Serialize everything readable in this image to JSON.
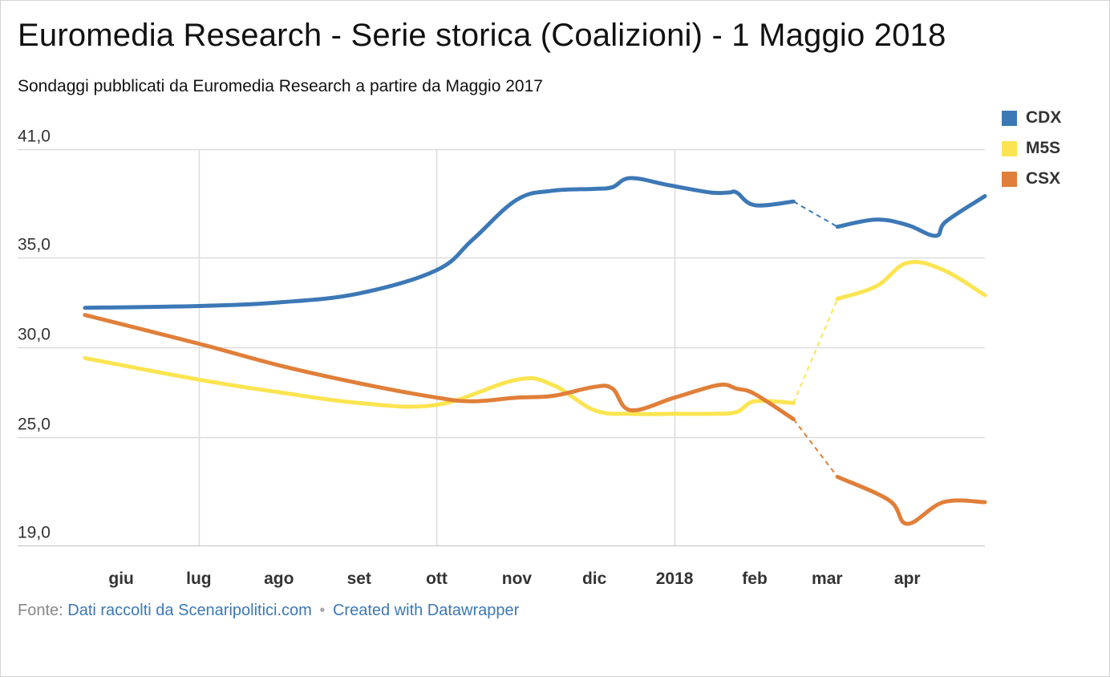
{
  "header": {
    "title": "Euromedia Research - Serie storica (Coalizioni) - 1 Maggio 2018",
    "subtitle": "Sondaggi pubblicati da Euromedia Research a partire da Maggio 2017"
  },
  "footer": {
    "source_label": "Fonte:",
    "source_link": "Dati raccolti da Scenaripolitici.com",
    "separator": "•",
    "datawrapper_link": "Created with Datawrapper"
  },
  "chart_data": {
    "type": "line",
    "y_ticks": [
      {
        "value": 41,
        "label": "41,0"
      },
      {
        "value": 35,
        "label": "35,0"
      },
      {
        "value": 30,
        "label": "30,0"
      },
      {
        "value": 25,
        "label": "25,0"
      },
      {
        "value": 19,
        "label": "19,0"
      }
    ],
    "x_ticks": [
      {
        "date": "2017-06-01",
        "label": "giu"
      },
      {
        "date": "2017-07-01",
        "label": "lug"
      },
      {
        "date": "2017-08-01",
        "label": "ago"
      },
      {
        "date": "2017-09-01",
        "label": "set"
      },
      {
        "date": "2017-10-01",
        "label": "ott"
      },
      {
        "date": "2017-11-01",
        "label": "nov"
      },
      {
        "date": "2017-12-01",
        "label": "dic"
      },
      {
        "date": "2018-01-01",
        "label": "2018"
      },
      {
        "date": "2018-02-01",
        "label": "feb"
      },
      {
        "date": "2018-03-01",
        "label": "mar"
      },
      {
        "date": "2018-04-01",
        "label": "apr"
      }
    ],
    "x_range": [
      "2017-05-18",
      "2018-05-01"
    ],
    "y_range": [
      19,
      41
    ],
    "legend_position": "top-right",
    "grid": true,
    "gap": {
      "start": "2018-02-16",
      "end": "2018-03-05",
      "style": "dashed"
    },
    "series": [
      {
        "name": "CDX",
        "color": "#3c78b6",
        "points": [
          [
            "2017-05-18",
            32.2
          ],
          [
            "2017-07-01",
            32.3
          ],
          [
            "2017-08-01",
            32.5
          ],
          [
            "2017-09-01",
            33.0
          ],
          [
            "2017-10-01",
            34.3
          ],
          [
            "2017-10-15",
            36.0
          ],
          [
            "2017-11-01",
            38.2
          ],
          [
            "2017-11-15",
            38.7
          ],
          [
            "2017-12-01",
            38.8
          ],
          [
            "2017-12-08",
            38.9
          ],
          [
            "2017-12-15",
            39.4
          ],
          [
            "2017-12-30",
            39.0
          ],
          [
            "2018-01-15",
            38.6
          ],
          [
            "2018-01-22",
            38.6
          ],
          [
            "2018-01-25",
            38.6
          ],
          [
            "2018-02-01",
            37.9
          ],
          [
            "2018-02-16",
            38.1
          ],
          [
            "2018-03-05",
            36.7
          ],
          [
            "2018-03-20",
            37.1
          ],
          [
            "2018-04-01",
            36.8
          ],
          [
            "2018-04-12",
            36.2
          ],
          [
            "2018-04-16",
            37.0
          ],
          [
            "2018-05-01",
            38.4
          ]
        ]
      },
      {
        "name": "M5S",
        "color": "#fbe450",
        "points": [
          [
            "2017-05-18",
            29.4
          ],
          [
            "2017-07-01",
            28.2
          ],
          [
            "2017-08-01",
            27.5
          ],
          [
            "2017-09-01",
            26.9
          ],
          [
            "2017-10-01",
            26.8
          ],
          [
            "2017-11-01",
            28.2
          ],
          [
            "2017-11-15",
            27.9
          ],
          [
            "2017-12-01",
            26.5
          ],
          [
            "2017-12-15",
            26.3
          ],
          [
            "2018-01-01",
            26.3
          ],
          [
            "2018-01-15",
            26.3
          ],
          [
            "2018-01-25",
            26.4
          ],
          [
            "2018-02-01",
            27.0
          ],
          [
            "2018-02-16",
            26.9
          ],
          [
            "2018-03-05",
            32.7
          ],
          [
            "2018-03-20",
            33.4
          ],
          [
            "2018-04-01",
            34.7
          ],
          [
            "2018-04-15",
            34.3
          ],
          [
            "2018-05-01",
            32.9
          ]
        ]
      },
      {
        "name": "CSX",
        "color": "#e07f39",
        "points": [
          [
            "2017-05-18",
            31.8
          ],
          [
            "2017-07-01",
            30.2
          ],
          [
            "2017-08-01",
            29.0
          ],
          [
            "2017-09-01",
            28.0
          ],
          [
            "2017-10-01",
            27.2
          ],
          [
            "2017-10-15",
            27.0
          ],
          [
            "2017-11-01",
            27.2
          ],
          [
            "2017-11-15",
            27.3
          ],
          [
            "2017-12-01",
            27.8
          ],
          [
            "2017-12-08",
            27.7
          ],
          [
            "2017-12-15",
            26.5
          ],
          [
            "2018-01-01",
            27.2
          ],
          [
            "2018-01-18",
            27.9
          ],
          [
            "2018-01-25",
            27.7
          ],
          [
            "2018-02-01",
            27.4
          ],
          [
            "2018-02-16",
            26.0
          ],
          [
            "2018-03-05",
            22.8
          ],
          [
            "2018-03-25",
            21.5
          ],
          [
            "2018-04-01",
            20.2
          ],
          [
            "2018-04-15",
            21.4
          ],
          [
            "2018-05-01",
            21.4
          ]
        ]
      }
    ]
  }
}
